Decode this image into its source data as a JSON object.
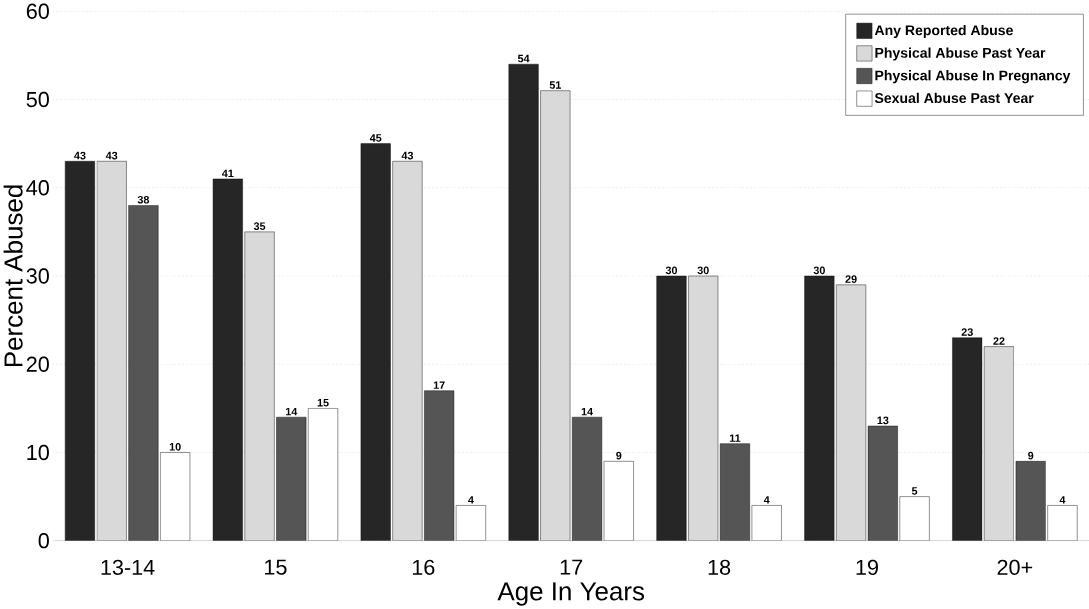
{
  "chart_data": {
    "type": "bar",
    "xlabel": "Age In Years",
    "ylabel": "Percent Abused",
    "categories": [
      "13-14",
      "15",
      "16",
      "17",
      "18",
      "19",
      "20+"
    ],
    "series": [
      {
        "name": "Any Reported Abuse",
        "color": "#262626",
        "values": [
          43,
          41,
          45,
          54,
          30,
          30,
          23
        ]
      },
      {
        "name": "Physical Abuse Past Year",
        "color": "#d9d9d9",
        "values": [
          43,
          35,
          43,
          51,
          30,
          29,
          22
        ]
      },
      {
        "name": "Physical Abuse In Pregnancy",
        "color": "#555555",
        "values": [
          38,
          14,
          17,
          14,
          11,
          13,
          9
        ]
      },
      {
        "name": "Sexual Abuse Past Year",
        "color": "#ffffff",
        "values": [
          10,
          15,
          4,
          9,
          4,
          5,
          4
        ]
      }
    ],
    "ylim": [
      0,
      60
    ],
    "yticks": [
      0,
      10,
      20,
      30,
      40,
      50,
      60
    ],
    "grid": "y",
    "legend": "top right",
    "data_labels": true
  }
}
